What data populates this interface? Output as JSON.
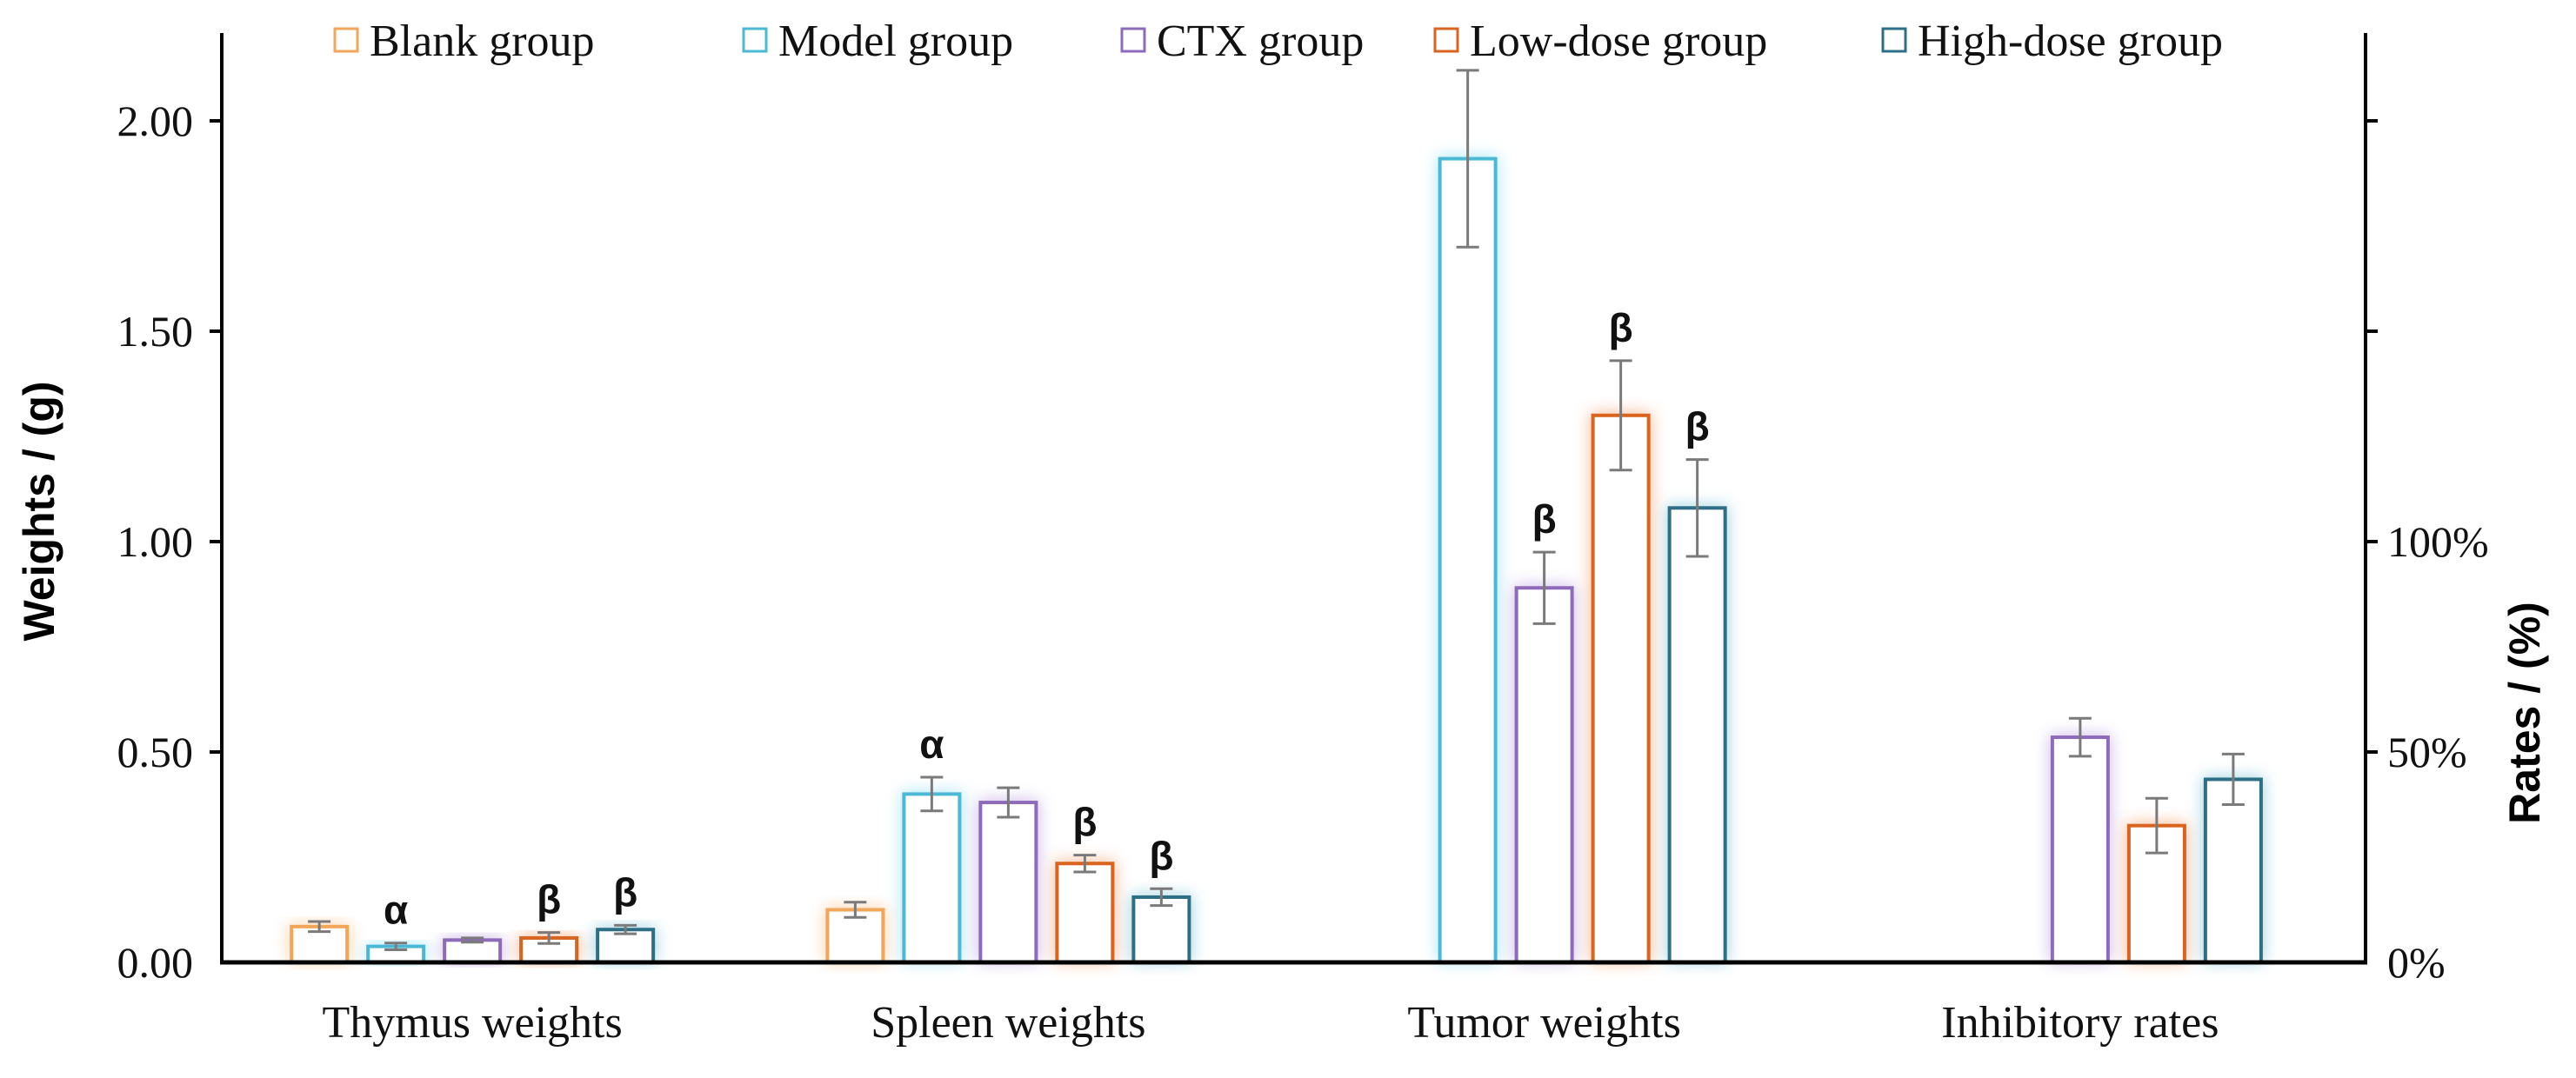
{
  "chart_data": {
    "type": "bar",
    "title": "",
    "ylabel": "Weights / (g)",
    "y2label": "Rates / (%)",
    "ylim": [
      0,
      2.2
    ],
    "yticks": [
      "0.00",
      "0.50",
      "1.00",
      "1.50",
      "2.00"
    ],
    "ytick_values": [
      0,
      0.5,
      1.0,
      1.5,
      2.0
    ],
    "y2ticks": [
      "0%",
      "50%",
      "100%"
    ],
    "y2_scale_weight_per_100pct": 1.0,
    "legend_position": "top",
    "categories": [
      "Thymus weights",
      "Spleen weights",
      "Tumor weights",
      "Inhibitory rates"
    ],
    "series": [
      {
        "name": "Blank group",
        "color": "#F2A65A",
        "glow": "#FBCFA3",
        "values": [
          0.085,
          0.125,
          null,
          null
        ],
        "errors": [
          0.012,
          0.018,
          null,
          null
        ],
        "sig": [
          "",
          "",
          "",
          ""
        ]
      },
      {
        "name": "Model group",
        "color": "#4BB8D6",
        "glow": "#A6E6F6",
        "values": [
          0.038,
          0.4,
          1.91,
          null
        ],
        "errors": [
          0.008,
          0.04,
          0.21,
          null
        ],
        "sig": [
          "α",
          "α",
          "",
          ""
        ]
      },
      {
        "name": "CTX group",
        "color": "#8E6BB8",
        "glow": "#CBB6E6",
        "values": [
          0.053,
          0.38,
          0.89,
          0.535
        ],
        "errors": [
          0.005,
          0.035,
          0.085,
          0.045
        ],
        "sig": [
          "",
          "",
          "β",
          ""
        ]
      },
      {
        "name": "Low-dose group",
        "color": "#D8641F",
        "glow": "#F6B48C",
        "values": [
          0.058,
          0.235,
          1.3,
          0.325
        ],
        "errors": [
          0.013,
          0.02,
          0.13,
          0.065
        ],
        "sig": [
          "β",
          "β",
          "β",
          ""
        ]
      },
      {
        "name": "High-dose group",
        "color": "#2F6F86",
        "glow": "#9AD0E0",
        "values": [
          0.078,
          0.155,
          1.08,
          0.435
        ],
        "errors": [
          0.01,
          0.02,
          0.115,
          0.06
        ],
        "sig": [
          "β",
          "β",
          "β",
          ""
        ]
      }
    ]
  }
}
